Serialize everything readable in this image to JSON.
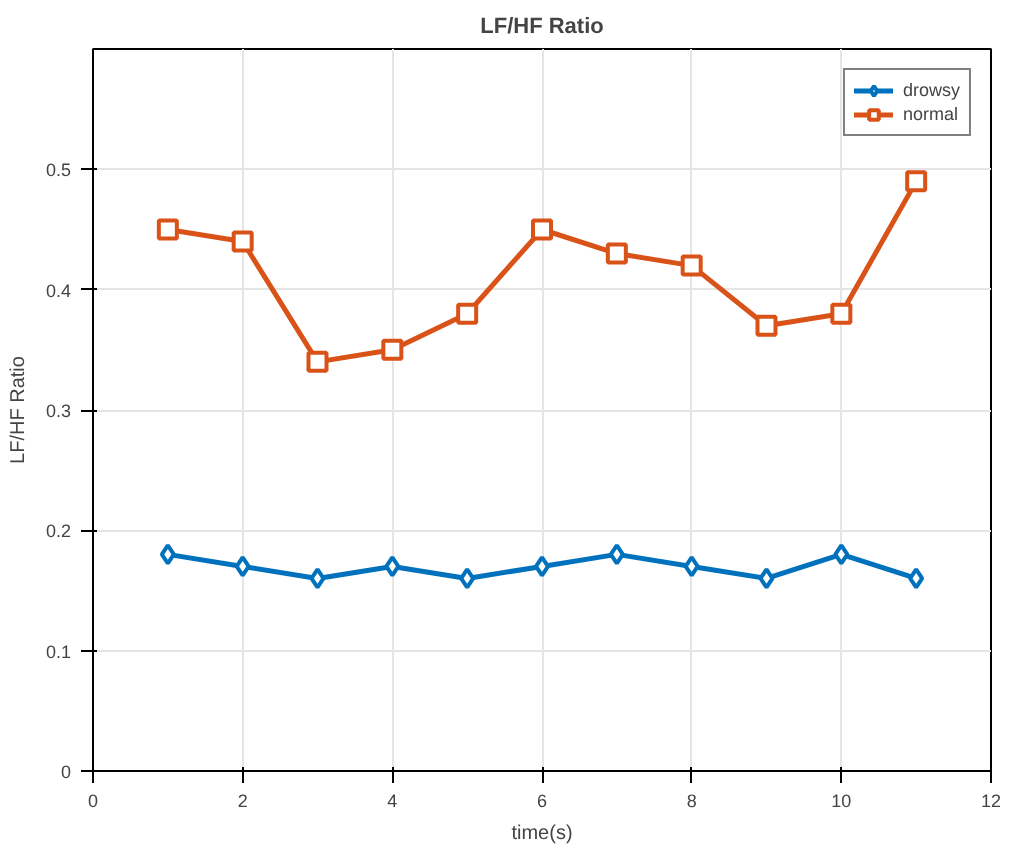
{
  "chart_data": {
    "type": "line",
    "title": "LF/HF Ratio",
    "xlabel": "time(s)",
    "ylabel": "LF/HF Ratio",
    "x": [
      1,
      2,
      3,
      4,
      5,
      6,
      7,
      8,
      9,
      10,
      11
    ],
    "series": [
      {
        "name": "drowsy",
        "color": "#0072bd",
        "marker": "diamond",
        "values": [
          0.18,
          0.17,
          0.16,
          0.17,
          0.16,
          0.17,
          0.18,
          0.17,
          0.16,
          0.18,
          0.16
        ]
      },
      {
        "name": "normal",
        "color": "#d95319",
        "marker": "square",
        "values": [
          0.45,
          0.44,
          0.34,
          0.35,
          0.38,
          0.45,
          0.43,
          0.42,
          0.37,
          0.38,
          0.49
        ]
      }
    ],
    "xlim": [
      0,
      12
    ],
    "xticks": [
      0,
      2,
      4,
      6,
      8,
      10,
      12
    ],
    "ylim": [
      0,
      0.6
    ],
    "yticks": [
      0,
      0.1,
      0.2,
      0.3,
      0.4,
      0.5
    ],
    "grid": true,
    "legend": "top right",
    "line_style": "solid"
  }
}
